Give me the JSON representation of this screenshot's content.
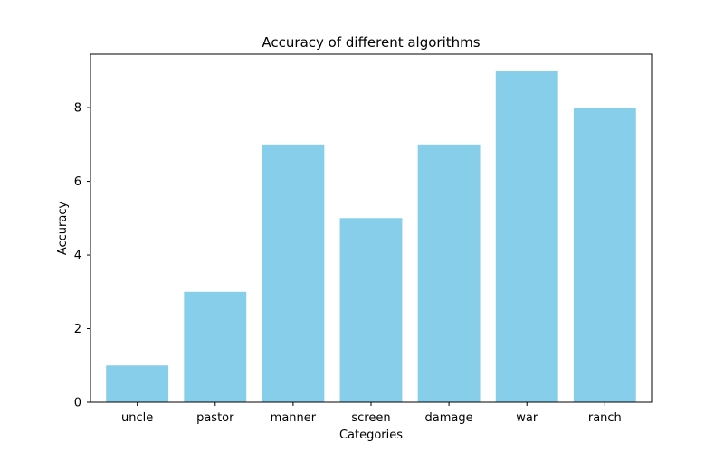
{
  "chart_data": {
    "type": "bar",
    "title": "Accuracy of different algorithms",
    "xlabel": "Categories",
    "ylabel": "Accuracy",
    "categories": [
      "uncle",
      "pastor",
      "manner",
      "screen",
      "damage",
      "war",
      "ranch"
    ],
    "values": [
      1,
      3,
      7,
      5,
      7,
      9,
      8
    ],
    "ylim": [
      0,
      9.45
    ],
    "yticks": [
      0,
      2,
      4,
      6,
      8
    ],
    "grid": false,
    "bar_color": "#87CEEB"
  }
}
